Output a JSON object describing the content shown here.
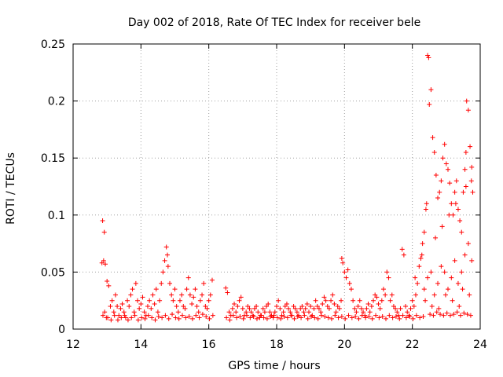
{
  "chart_data": {
    "type": "scatter",
    "title": "Day 002 of 2018, Rate Of TEC Index for receiver bele",
    "xlabel": "GPS time / hours",
    "ylabel": "ROTI / TECUs",
    "xlim": [
      12,
      24
    ],
    "ylim": [
      0,
      0.25
    ],
    "xticks": [
      12,
      14,
      16,
      18,
      20,
      22,
      24
    ],
    "yticks": [
      0,
      0.05,
      0.1,
      0.15,
      0.2,
      0.25
    ],
    "xtick_labels": [
      "12",
      "14",
      "16",
      "18",
      "20",
      "22",
      "24"
    ],
    "ytick_labels": [
      "0",
      "0.05",
      "0.1",
      "0.15",
      "0.2",
      "0.25"
    ],
    "grid": true,
    "marker": "+",
    "color": "#ff0000",
    "series": [
      {
        "name": "ROTI",
        "x": [
          12.85,
          12.9,
          12.95,
          13.0,
          12.88,
          12.93,
          12.98,
          13.05,
          13.1,
          13.15,
          13.2,
          13.25,
          13.3,
          13.35,
          13.4,
          13.45,
          13.5,
          13.55,
          13.6,
          13.65,
          13.7,
          13.75,
          13.8,
          13.85,
          13.9,
          13.95,
          14.0,
          14.05,
          14.1,
          14.15,
          14.2,
          14.25,
          14.3,
          14.35,
          14.4,
          14.45,
          14.5,
          14.55,
          14.6,
          14.65,
          14.7,
          14.75,
          14.78,
          14.8,
          14.85,
          14.9,
          14.95,
          15.0,
          15.05,
          15.1,
          15.15,
          15.2,
          15.25,
          15.3,
          15.35,
          15.4,
          15.45,
          15.5,
          15.55,
          15.6,
          15.65,
          15.7,
          15.75,
          15.8,
          15.85,
          15.9,
          15.95,
          16.0,
          16.05,
          16.1,
          16.5,
          16.55,
          16.6,
          16.65,
          16.7,
          16.75,
          16.8,
          16.85,
          16.9,
          16.95,
          17.0,
          17.05,
          17.1,
          17.15,
          17.2,
          17.25,
          17.3,
          17.35,
          17.4,
          17.45,
          17.5,
          17.55,
          17.6,
          17.65,
          17.7,
          17.75,
          17.8,
          17.85,
          17.9,
          17.95,
          18.0,
          18.05,
          18.1,
          18.15,
          18.2,
          18.25,
          18.3,
          18.35,
          18.4,
          18.45,
          18.5,
          18.55,
          18.6,
          18.65,
          18.7,
          18.75,
          18.8,
          18.85,
          18.9,
          18.95,
          19.0,
          19.05,
          19.1,
          19.15,
          19.2,
          19.25,
          19.3,
          19.35,
          19.4,
          19.45,
          19.5,
          19.55,
          19.6,
          19.65,
          19.7,
          19.75,
          19.8,
          19.85,
          19.9,
          19.92,
          19.95,
          20.0,
          20.05,
          20.1,
          20.15,
          20.2,
          20.25,
          20.3,
          20.35,
          20.4,
          20.45,
          20.5,
          20.55,
          20.6,
          20.65,
          20.7,
          20.75,
          20.8,
          20.85,
          20.9,
          20.95,
          21.0,
          21.05,
          21.1,
          21.15,
          21.2,
          21.25,
          21.3,
          21.35,
          21.4,
          21.45,
          21.5,
          21.55,
          21.6,
          21.65,
          21.7,
          21.75,
          21.8,
          21.85,
          21.9,
          21.95,
          22.0,
          22.05,
          22.1,
          22.15,
          22.2,
          22.25,
          22.3,
          22.35,
          22.4,
          22.42,
          22.45,
          22.48,
          22.5,
          22.55,
          22.6,
          22.65,
          22.7,
          22.75,
          22.8,
          22.85,
          22.9,
          22.95,
          23.0,
          23.05,
          23.1,
          23.15,
          23.2,
          23.25,
          23.3,
          23.35,
          23.4,
          23.45,
          23.5,
          23.55,
          23.58,
          23.6,
          23.65,
          23.7,
          23.75,
          23.78,
          12.87,
          12.92,
          13.02,
          13.12,
          13.22,
          13.32,
          13.42,
          13.52,
          13.62,
          13.72,
          13.82,
          13.92,
          14.02,
          14.12,
          14.22,
          14.32,
          14.42,
          14.52,
          14.62,
          14.72,
          14.82,
          14.92,
          15.02,
          15.12,
          15.22,
          15.32,
          15.42,
          15.52,
          15.62,
          15.72,
          15.82,
          15.92,
          16.02,
          16.12,
          16.52,
          16.62,
          16.72,
          16.82,
          16.92,
          17.02,
          17.12,
          17.22,
          17.32,
          17.42,
          17.52,
          17.62,
          17.72,
          17.82,
          17.92,
          18.02,
          18.12,
          18.22,
          18.32,
          18.42,
          18.52,
          18.62,
          18.72,
          18.82,
          18.92,
          19.02,
          19.12,
          19.22,
          19.32,
          19.42,
          19.52,
          19.62,
          19.72,
          19.82,
          19.92,
          20.02,
          20.12,
          20.22,
          20.32,
          20.42,
          20.52,
          20.62,
          20.72,
          20.82,
          20.92,
          21.02,
          21.12,
          21.22,
          21.32,
          21.42,
          21.52,
          21.62,
          21.72,
          21.82,
          21.92,
          22.02,
          22.12,
          22.22,
          22.32,
          22.52,
          22.62,
          22.72,
          22.82,
          22.92,
          23.02,
          23.12,
          23.22,
          23.32,
          23.42,
          23.52,
          23.62,
          23.72,
          22.35,
          22.45,
          22.55,
          22.65,
          22.75,
          22.85,
          22.95,
          23.05,
          23.15,
          23.25,
          23.35,
          23.45,
          23.55,
          23.65,
          23.75,
          22.38,
          22.58,
          22.78,
          22.98,
          23.18,
          23.38,
          23.48,
          23.68,
          22.08,
          22.28,
          22.68,
          22.88,
          23.08,
          23.28,
          23.58,
          23.74
        ],
        "y": [
          0.058,
          0.06,
          0.057,
          0.042,
          0.012,
          0.015,
          0.01,
          0.038,
          0.02,
          0.025,
          0.015,
          0.03,
          0.02,
          0.012,
          0.018,
          0.022,
          0.015,
          0.01,
          0.025,
          0.02,
          0.03,
          0.035,
          0.015,
          0.04,
          0.025,
          0.018,
          0.022,
          0.028,
          0.015,
          0.012,
          0.02,
          0.025,
          0.018,
          0.03,
          0.022,
          0.035,
          0.015,
          0.025,
          0.04,
          0.05,
          0.06,
          0.072,
          0.065,
          0.055,
          0.04,
          0.03,
          0.025,
          0.035,
          0.02,
          0.015,
          0.025,
          0.03,
          0.02,
          0.018,
          0.035,
          0.045,
          0.03,
          0.022,
          0.028,
          0.035,
          0.02,
          0.015,
          0.025,
          0.03,
          0.04,
          0.02,
          0.018,
          0.025,
          0.03,
          0.043,
          0.036,
          0.032,
          0.015,
          0.012,
          0.018,
          0.022,
          0.015,
          0.02,
          0.025,
          0.028,
          0.018,
          0.012,
          0.015,
          0.02,
          0.018,
          0.015,
          0.012,
          0.018,
          0.02,
          0.015,
          0.01,
          0.012,
          0.018,
          0.015,
          0.02,
          0.022,
          0.015,
          0.012,
          0.01,
          0.015,
          0.02,
          0.025,
          0.018,
          0.012,
          0.015,
          0.02,
          0.022,
          0.018,
          0.015,
          0.012,
          0.02,
          0.018,
          0.015,
          0.012,
          0.018,
          0.02,
          0.015,
          0.018,
          0.022,
          0.015,
          0.02,
          0.012,
          0.018,
          0.025,
          0.02,
          0.018,
          0.015,
          0.022,
          0.028,
          0.025,
          0.02,
          0.018,
          0.025,
          0.03,
          0.022,
          0.015,
          0.02,
          0.018,
          0.025,
          0.062,
          0.058,
          0.05,
          0.045,
          0.052,
          0.04,
          0.035,
          0.025,
          0.018,
          0.015,
          0.02,
          0.025,
          0.018,
          0.015,
          0.012,
          0.018,
          0.022,
          0.015,
          0.02,
          0.025,
          0.03,
          0.028,
          0.022,
          0.018,
          0.025,
          0.035,
          0.03,
          0.05,
          0.045,
          0.025,
          0.03,
          0.02,
          0.018,
          0.015,
          0.012,
          0.018,
          0.07,
          0.065,
          0.02,
          0.015,
          0.012,
          0.018,
          0.025,
          0.02,
          0.03,
          0.04,
          0.055,
          0.062,
          0.075,
          0.085,
          0.105,
          0.11,
          0.24,
          0.238,
          0.197,
          0.21,
          0.168,
          0.155,
          0.135,
          0.115,
          0.12,
          0.13,
          0.15,
          0.162,
          0.145,
          0.14,
          0.128,
          0.11,
          0.1,
          0.12,
          0.13,
          0.105,
          0.095,
          0.085,
          0.12,
          0.14,
          0.155,
          0.2,
          0.192,
          0.16,
          0.142,
          0.12,
          0.095,
          0.085,
          0.01,
          0.008,
          0.012,
          0.008,
          0.01,
          0.012,
          0.008,
          0.01,
          0.012,
          0.008,
          0.01,
          0.009,
          0.012,
          0.01,
          0.008,
          0.011,
          0.01,
          0.012,
          0.009,
          0.013,
          0.01,
          0.009,
          0.012,
          0.01,
          0.011,
          0.009,
          0.012,
          0.01,
          0.013,
          0.011,
          0.009,
          0.012,
          0.01,
          0.008,
          0.012,
          0.01,
          0.011,
          0.009,
          0.012,
          0.01,
          0.011,
          0.009,
          0.012,
          0.01,
          0.009,
          0.011,
          0.012,
          0.01,
          0.009,
          0.011,
          0.01,
          0.012,
          0.009,
          0.011,
          0.01,
          0.012,
          0.009,
          0.011,
          0.01,
          0.009,
          0.012,
          0.011,
          0.01,
          0.009,
          0.012,
          0.01,
          0.011,
          0.009,
          0.012,
          0.01,
          0.011,
          0.009,
          0.012,
          0.01,
          0.011,
          0.009,
          0.012,
          0.01,
          0.011,
          0.009,
          0.012,
          0.01,
          0.011,
          0.009,
          0.012,
          0.01,
          0.011,
          0.009,
          0.012,
          0.01,
          0.011,
          0.013,
          0.012,
          0.015,
          0.013,
          0.012,
          0.014,
          0.012,
          0.013,
          0.015,
          0.012,
          0.014,
          0.013,
          0.012,
          0.035,
          0.045,
          0.05,
          0.03,
          0.04,
          0.055,
          0.05,
          0.035,
          0.045,
          0.06,
          0.04,
          0.05,
          0.065,
          0.075,
          0.06,
          0.025,
          0.02,
          0.018,
          0.03,
          0.025,
          0.02,
          0.035,
          0.03,
          0.045,
          0.065,
          0.08,
          0.09,
          0.1,
          0.11,
          0.125,
          0.13
        ]
      }
    ]
  }
}
